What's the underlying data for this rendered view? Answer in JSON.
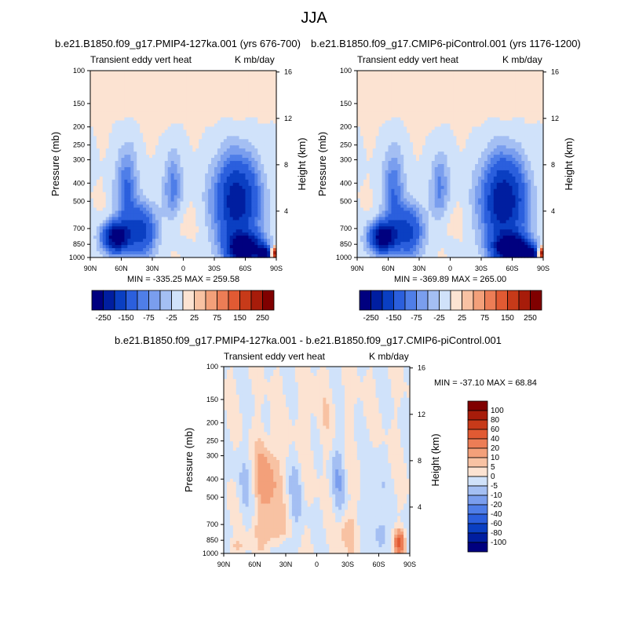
{
  "page": {
    "title": "JJA"
  },
  "colors": {
    "scale": [
      "#00007f",
      "#001ea0",
      "#0a3fc2",
      "#2b5fdd",
      "#4f7ee8",
      "#7a9eee",
      "#a4bff3",
      "#d0e2fa",
      "#fce3d2",
      "#f8c2a3",
      "#f3a07a",
      "#ec7d56",
      "#e15a33",
      "#c73a19",
      "#a71c0a",
      "#800000"
    ]
  },
  "chart_data": [
    {
      "type": "heatmap",
      "id": "top-left",
      "title": "b.e21.B1850.f09_g17.PMIP4-127ka.001 (yrs 676-700)",
      "left_label": "Transient eddy vert heat",
      "right_label": "K mb/day",
      "xlabel": "",
      "ylabel": "Pressure (mb)",
      "y2label": "Height (km)",
      "xticks": [
        "90N",
        "60N",
        "30N",
        "0",
        "30S",
        "60S",
        "90S"
      ],
      "yticks": [
        "100",
        "150",
        "200",
        "250",
        "300",
        "400",
        "500",
        "700",
        "850",
        "1000"
      ],
      "y2ticks": [
        "16",
        "12",
        "8",
        "4"
      ],
      "x_range": [
        90,
        -90
      ],
      "y_range": [
        1000,
        100
      ],
      "y_scale": "log",
      "min_max_text": "MIN = -335.25   MAX = 259.58",
      "min": -335.25,
      "max": 259.58,
      "colorbar": {
        "orientation": "horizontal",
        "labels": [
          "-250",
          "-150",
          "-75",
          "-25",
          "25",
          "75",
          "150",
          "250"
        ]
      },
      "field": [
        {
          "lat": 65,
          "p": 780,
          "sx": 9,
          "sp": 0.13,
          "a": -300
        },
        {
          "lat": 40,
          "p": 720,
          "sx": 10,
          "sp": 0.22,
          "a": -170
        },
        {
          "lat": 55,
          "p": 430,
          "sx": 7,
          "sp": 0.35,
          "a": -110
        },
        {
          "lat": 10,
          "p": 420,
          "sx": 6,
          "sp": 0.3,
          "a": -90
        },
        {
          "lat": -52,
          "p": 500,
          "sx": 15,
          "sp": 0.38,
          "a": -240
        },
        {
          "lat": -60,
          "p": 900,
          "sx": 12,
          "sp": 0.12,
          "a": -330
        },
        {
          "lat": -78,
          "p": 960,
          "sx": 4,
          "sp": 0.06,
          "a": -320
        },
        {
          "lat": 0,
          "p": 130,
          "sx": 90,
          "sp": 0.25,
          "a": 15
        },
        {
          "lat": 5,
          "p": 650,
          "sx": 10,
          "sp": 0.15,
          "a": 15
        },
        {
          "lat": -88,
          "p": 950,
          "sx": 2,
          "sp": 0.05,
          "a": 250
        }
      ]
    },
    {
      "type": "heatmap",
      "id": "top-right",
      "title": "b.e21.B1850.f09_g17.CMIP6-piControl.001 (yrs 1176-1200)",
      "left_label": "Transient eddy vert heat",
      "right_label": "K mb/day",
      "xlabel": "",
      "ylabel": "Pressure (mb)",
      "y2label": "Height (km)",
      "xticks": [
        "90N",
        "60N",
        "30N",
        "0",
        "30S",
        "60S",
        "90S"
      ],
      "yticks": [
        "100",
        "150",
        "200",
        "250",
        "300",
        "400",
        "500",
        "700",
        "850",
        "1000"
      ],
      "y2ticks": [
        "16",
        "12",
        "8",
        "4"
      ],
      "x_range": [
        90,
        -90
      ],
      "y_range": [
        1000,
        100
      ],
      "y_scale": "log",
      "min_max_text": "MIN = -369.89   MAX = 265.00",
      "min": -369.89,
      "max": 265.0,
      "colorbar": {
        "orientation": "horizontal",
        "labels": [
          "-250",
          "-150",
          "-75",
          "-25",
          "25",
          "75",
          "150",
          "250"
        ]
      },
      "field": [
        {
          "lat": 65,
          "p": 780,
          "sx": 9,
          "sp": 0.13,
          "a": -310
        },
        {
          "lat": 40,
          "p": 720,
          "sx": 10,
          "sp": 0.22,
          "a": -160
        },
        {
          "lat": 55,
          "p": 430,
          "sx": 7,
          "sp": 0.35,
          "a": -100
        },
        {
          "lat": 10,
          "p": 420,
          "sx": 6,
          "sp": 0.3,
          "a": -85
        },
        {
          "lat": -52,
          "p": 500,
          "sx": 15,
          "sp": 0.38,
          "a": -250
        },
        {
          "lat": -60,
          "p": 900,
          "sx": 12,
          "sp": 0.12,
          "a": -350
        },
        {
          "lat": -78,
          "p": 960,
          "sx": 4,
          "sp": 0.06,
          "a": -330
        },
        {
          "lat": 0,
          "p": 130,
          "sx": 90,
          "sp": 0.25,
          "a": 15
        },
        {
          "lat": 5,
          "p": 650,
          "sx": 10,
          "sp": 0.15,
          "a": 15
        },
        {
          "lat": -88,
          "p": 950,
          "sx": 2,
          "sp": 0.05,
          "a": 255
        }
      ]
    },
    {
      "type": "heatmap",
      "id": "difference",
      "title": "b.e21.B1850.f09_g17.PMIP4-127ka.001 - b.e21.B1850.f09_g17.CMIP6-piControl.001",
      "left_label": "Transient eddy vert heat",
      "right_label": "K mb/day",
      "xlabel": "",
      "ylabel": "Pressure (mb)",
      "y2label": "Height (km)",
      "xticks": [
        "90N",
        "60N",
        "30N",
        "0",
        "30S",
        "60S",
        "90S"
      ],
      "yticks": [
        "100",
        "150",
        "200",
        "250",
        "300",
        "400",
        "500",
        "700",
        "850",
        "1000"
      ],
      "y2ticks": [
        "16",
        "12",
        "8",
        "4"
      ],
      "x_range": [
        90,
        -90
      ],
      "y_range": [
        1000,
        100
      ],
      "y_scale": "log",
      "min_max_text": "MIN = -37.10   MAX =  68.84",
      "min": -37.1,
      "max": 68.84,
      "colorbar": {
        "orientation": "vertical",
        "labels": [
          "100",
          "80",
          "60",
          "40",
          "20",
          "10",
          "5",
          "0",
          "-5",
          "-10",
          "-20",
          "-40",
          "-60",
          "-80",
          "-100"
        ]
      },
      "field": [
        {
          "lat": 48,
          "p": 400,
          "sx": 9,
          "sp": 0.35,
          "a": 14
        },
        {
          "lat": 45,
          "p": 750,
          "sx": 10,
          "sp": 0.15,
          "a": 9
        },
        {
          "lat": 70,
          "p": 450,
          "sx": 6,
          "sp": 0.35,
          "a": -5
        },
        {
          "lat": 20,
          "p": 480,
          "sx": 5,
          "sp": 0.35,
          "a": -6
        },
        {
          "lat": -20,
          "p": 380,
          "sx": 5,
          "sp": 0.4,
          "a": -8
        },
        {
          "lat": -30,
          "p": 760,
          "sx": 6,
          "sp": 0.18,
          "a": 9
        },
        {
          "lat": -55,
          "p": 480,
          "sx": 6,
          "sp": 0.3,
          "a": -7
        },
        {
          "lat": -62,
          "p": 800,
          "sx": 5,
          "sp": 0.15,
          "a": -9
        },
        {
          "lat": -80,
          "p": 880,
          "sx": 3,
          "sp": 0.09,
          "a": 45
        },
        {
          "lat": -5,
          "p": 200,
          "sx": 20,
          "sp": 0.4,
          "a": 2.5
        },
        {
          "lat": 30,
          "p": 900,
          "sx": 4,
          "sp": 0.08,
          "a": -6
        },
        {
          "lat": 78,
          "p": 920,
          "sx": 5,
          "sp": 0.08,
          "a": 6
        }
      ]
    }
  ]
}
